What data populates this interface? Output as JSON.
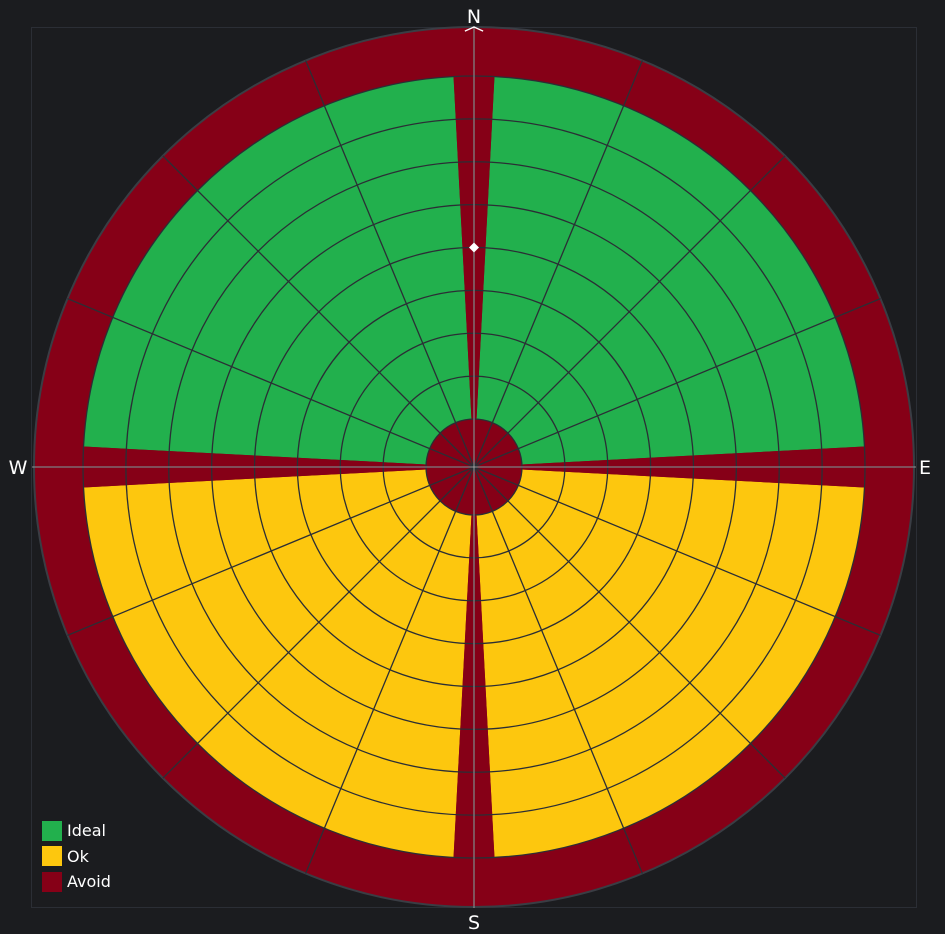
{
  "chart_data": {
    "type": "polar-area",
    "compass": {
      "n": "N",
      "e": "E",
      "s": "S",
      "w": "W"
    },
    "colors": {
      "ideal": "#22b04d",
      "ok": "#fdc70e",
      "avoid": "#860017",
      "background": "#1b1c1f",
      "grid": "#2b2e35",
      "axis": "#b5b5b5",
      "marker": "#ffffff"
    },
    "zones": [
      {
        "label": "Ideal",
        "color_key": "ideal",
        "ranges_deg": [
          [
            3,
            87
          ],
          [
            273,
            357
          ]
        ]
      },
      {
        "label": "Ok",
        "color_key": "ok",
        "ranges_deg": [
          [
            93,
            177
          ],
          [
            183,
            267
          ]
        ]
      },
      {
        "label": "Avoid",
        "color_key": "avoid",
        "ranges_deg": [
          [
            357,
            3
          ],
          [
            87,
            93
          ],
          [
            177,
            183
          ],
          [
            267,
            273
          ]
        ]
      }
    ],
    "avoid_outer_band": true,
    "avoid_center": true,
    "radial_rings": 8,
    "spoke_interval_deg": 22.5,
    "marker": {
      "bearing_deg": 0,
      "ring_fraction": 0.5,
      "shape": "diamond"
    }
  },
  "legend": [
    {
      "label": "Ideal",
      "color_key": "ideal"
    },
    {
      "label": "Ok",
      "color_key": "ok"
    },
    {
      "label": "Avoid",
      "color_key": "avoid"
    }
  ]
}
